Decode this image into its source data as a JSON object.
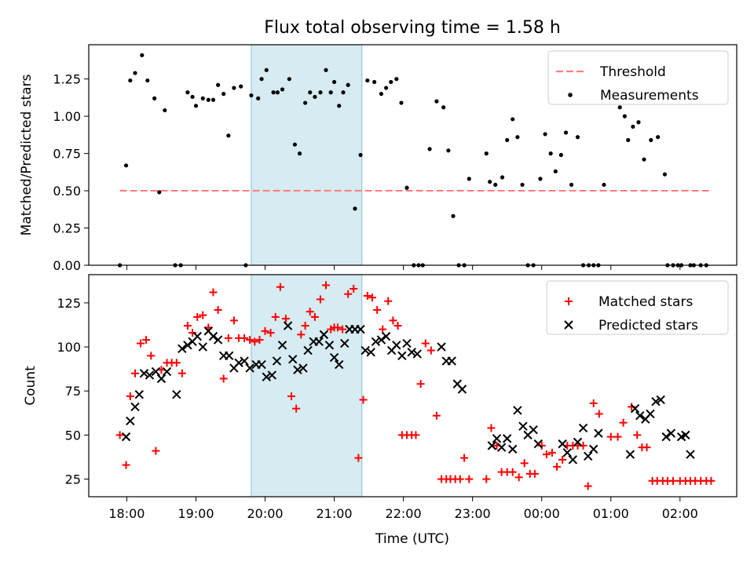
{
  "title": "Flux total observing time = 1.58 h",
  "colors": {
    "threshold": "#ff7f7f",
    "measurement": "#000000",
    "matched": "#ff0000",
    "predicted": "#000000",
    "span": "#add8e6"
  },
  "chart_data": [
    {
      "type": "scatter",
      "title": "Flux total observing time = 1.58 h",
      "ylabel": "Matched/Predicted stars",
      "xlabel": "",
      "xlim": [
        17.45,
        26.82
      ],
      "ylim": [
        0,
        1.48
      ],
      "yticks": [
        "0.00",
        "0.25",
        "0.50",
        "0.75",
        "1.00",
        "1.25"
      ],
      "xticks": [
        "18:00",
        "19:00",
        "20:00",
        "21:00",
        "22:00",
        "23:00",
        "00:00",
        "01:00",
        "02:00"
      ],
      "shaded_span": [
        19.8,
        21.4
      ],
      "legend": [
        "Threshold",
        "Measurements"
      ],
      "legend_position": "upper right",
      "threshold": {
        "name": "Threshold",
        "x": [
          17.9,
          26.43
        ],
        "y": 0.5
      },
      "series": [
        {
          "name": "Measurements",
          "x": [
            17.9,
            17.99,
            18.05,
            18.12,
            18.22,
            18.3,
            18.4,
            18.47,
            18.55,
            18.7,
            18.78,
            18.88,
            18.95,
            19.0,
            19.1,
            19.18,
            19.25,
            19.32,
            19.4,
            19.47,
            19.55,
            19.65,
            19.72,
            19.8,
            19.9,
            19.95,
            20.02,
            20.12,
            20.18,
            20.25,
            20.35,
            20.43,
            20.5,
            20.58,
            20.65,
            20.72,
            20.8,
            20.88,
            20.95,
            21.0,
            21.07,
            21.13,
            21.2,
            21.3,
            21.38,
            21.48,
            21.58,
            21.68,
            21.75,
            21.82,
            21.9,
            21.97,
            22.05,
            22.15,
            22.22,
            22.28,
            22.38,
            22.48,
            22.58,
            22.65,
            22.72,
            22.8,
            22.88,
            22.95,
            23.2,
            23.25,
            23.33,
            23.43,
            23.5,
            23.58,
            23.65,
            23.72,
            23.8,
            23.88,
            23.98,
            24.05,
            24.13,
            24.2,
            24.28,
            24.35,
            24.43,
            24.52,
            24.6,
            24.68,
            24.75,
            24.82,
            24.9,
            25.13,
            25.2,
            25.25,
            25.32,
            25.4,
            25.48,
            25.58,
            25.68,
            25.78,
            25.82,
            25.9,
            25.97,
            26.02,
            26.15,
            26.2,
            26.3,
            26.38
          ],
          "y": [
            0.0,
            0.67,
            1.24,
            1.29,
            1.41,
            1.24,
            1.12,
            0.49,
            1.04,
            0.0,
            0.0,
            1.16,
            1.13,
            1.07,
            1.12,
            1.11,
            1.11,
            1.21,
            1.15,
            0.87,
            1.19,
            1.2,
            0.0,
            1.14,
            1.12,
            1.25,
            1.31,
            1.16,
            1.16,
            1.18,
            1.25,
            0.81,
            0.75,
            1.09,
            1.16,
            1.13,
            1.16,
            1.31,
            1.16,
            1.23,
            1.07,
            1.16,
            1.21,
            0.38,
            0.74,
            1.24,
            1.23,
            1.15,
            1.19,
            1.23,
            1.25,
            1.09,
            0.52,
            0.0,
            0.0,
            0.0,
            0.78,
            1.1,
            1.06,
            0.77,
            0.33,
            0.0,
            0.0,
            0.58,
            0.75,
            0.56,
            0.54,
            0.59,
            0.84,
            0.98,
            0.86,
            0.54,
            0.0,
            0.0,
            0.58,
            0.88,
            0.75,
            0.63,
            0.74,
            0.89,
            0.54,
            0.86,
            0.0,
            0.0,
            0.0,
            0.0,
            0.54,
            1.06,
            1.0,
            0.84,
            0.93,
            0.96,
            0.71,
            0.84,
            0.86,
            0.61,
            0.0,
            0.0,
            0.0,
            0.0,
            0.0,
            0.0,
            0.0,
            0.0
          ]
        }
      ]
    },
    {
      "type": "scatter",
      "ylabel": "Count",
      "xlabel": "Time (UTC)",
      "xlim": [
        17.45,
        26.82
      ],
      "ylim": [
        15,
        141
      ],
      "yticks": [
        "25",
        "50",
        "75",
        "100",
        "125"
      ],
      "xticks": [
        "18:00",
        "19:00",
        "20:00",
        "21:00",
        "22:00",
        "23:00",
        "00:00",
        "01:00",
        "02:00"
      ],
      "shaded_span": [
        19.8,
        21.4
      ],
      "legend": [
        "Matched stars",
        "Predicted stars"
      ],
      "legend_position": "upper right",
      "series": [
        {
          "name": "Matched stars",
          "marker": "+",
          "x": [
            17.9,
            17.99,
            18.05,
            18.12,
            18.2,
            18.28,
            18.35,
            18.42,
            18.5,
            18.58,
            18.65,
            18.72,
            18.8,
            18.88,
            18.95,
            19.02,
            19.1,
            19.18,
            19.25,
            19.32,
            19.4,
            19.47,
            19.55,
            19.62,
            19.7,
            19.78,
            19.85,
            19.92,
            20.0,
            20.08,
            20.15,
            20.22,
            20.3,
            20.38,
            20.45,
            20.52,
            20.58,
            20.65,
            20.72,
            20.8,
            20.88,
            20.95,
            21.0,
            21.05,
            21.12,
            21.2,
            21.28,
            21.35,
            21.42,
            21.48,
            21.55,
            21.62,
            21.7,
            21.78,
            21.85,
            21.92,
            21.98,
            22.05,
            22.12,
            22.18,
            22.25,
            22.32,
            22.4,
            22.48,
            22.55,
            22.62,
            22.68,
            22.75,
            22.82,
            22.88,
            22.95,
            23.2,
            23.27,
            23.35,
            23.42,
            23.5,
            23.58,
            23.67,
            23.75,
            23.83,
            23.9,
            24.0,
            24.07,
            24.15,
            24.22,
            24.3,
            24.37,
            24.45,
            24.52,
            24.6,
            24.67,
            24.75,
            24.83,
            25.0,
            25.1,
            25.18,
            25.3,
            25.38,
            25.45,
            25.52,
            25.6,
            25.67,
            25.75,
            25.82,
            25.9,
            26.0,
            26.08,
            26.15,
            26.22,
            26.3,
            26.38,
            26.45
          ],
          "y": [
            50,
            33,
            72,
            85,
            102,
            104,
            95,
            41,
            87,
            91,
            91,
            91,
            85,
            112,
            108,
            117,
            118,
            111,
            131,
            121,
            82,
            105,
            115,
            105,
            105,
            104,
            103,
            104,
            109,
            108,
            117,
            134,
            116,
            72,
            65,
            107,
            112,
            120,
            117,
            127,
            135,
            110,
            111,
            111,
            110,
            130,
            133,
            37,
            70,
            129,
            128,
            121,
            110,
            126,
            115,
            112,
            50,
            50,
            50,
            50,
            79,
            102,
            98,
            61,
            25,
            25,
            25,
            25,
            25,
            37,
            25,
            25,
            54,
            44,
            29,
            29,
            29,
            26,
            34,
            28,
            28,
            44,
            39,
            40,
            32,
            36,
            44,
            44,
            44,
            44,
            21,
            68,
            62,
            49,
            49,
            57,
            66,
            50,
            43,
            43,
            24,
            24,
            24,
            24,
            24,
            24,
            24,
            24,
            24,
            24,
            24,
            24
          ],
          "x_clip": 26.45
        },
        {
          "name": "Predicted stars",
          "marker": "x",
          "x": [
            17.99,
            18.05,
            18.12,
            18.18,
            18.25,
            18.33,
            18.42,
            18.5,
            18.58,
            18.72,
            18.8,
            18.88,
            18.95,
            19.02,
            19.1,
            19.18,
            19.25,
            19.32,
            19.4,
            19.48,
            19.55,
            19.62,
            19.7,
            19.78,
            19.87,
            19.95,
            20.02,
            20.1,
            20.17,
            20.25,
            20.33,
            20.4,
            20.47,
            20.55,
            20.62,
            20.7,
            20.78,
            20.85,
            20.93,
            21.0,
            21.07,
            21.15,
            21.22,
            21.3,
            21.38,
            21.45,
            21.53,
            21.6,
            21.68,
            21.75,
            21.83,
            21.9,
            21.98,
            22.05,
            22.12,
            22.2,
            22.55,
            22.62,
            22.7,
            22.78,
            22.85,
            23.28,
            23.35,
            23.42,
            23.5,
            23.58,
            23.65,
            23.73,
            23.8,
            23.88,
            23.95,
            24.3,
            24.37,
            24.45,
            24.52,
            24.6,
            24.67,
            24.75,
            24.82,
            25.28,
            25.35,
            25.42,
            25.5,
            25.57,
            25.65,
            25.72,
            25.8,
            25.87,
            26.02,
            26.08,
            26.15
          ],
          "y": [
            49,
            58,
            66,
            73,
            85,
            84,
            86,
            82,
            86,
            73,
            99,
            101,
            103,
            106,
            100,
            109,
            106,
            104,
            95,
            95,
            88,
            91,
            92,
            88,
            90,
            90,
            83,
            84,
            92,
            101,
            112,
            93,
            87,
            88,
            98,
            103,
            103,
            107,
            101,
            94,
            90,
            102,
            110,
            110,
            110,
            98,
            97,
            103,
            104,
            106,
            98,
            101,
            95,
            102,
            97,
            96,
            100,
            92,
            92,
            79,
            76,
            44,
            48,
            43,
            48,
            42,
            64,
            55,
            50,
            53,
            45,
            45,
            40,
            36,
            46,
            54,
            38,
            42,
            51,
            39,
            65,
            61,
            59,
            62,
            69,
            70,
            49,
            51,
            49,
            50,
            39
          ]
        }
      ]
    }
  ]
}
